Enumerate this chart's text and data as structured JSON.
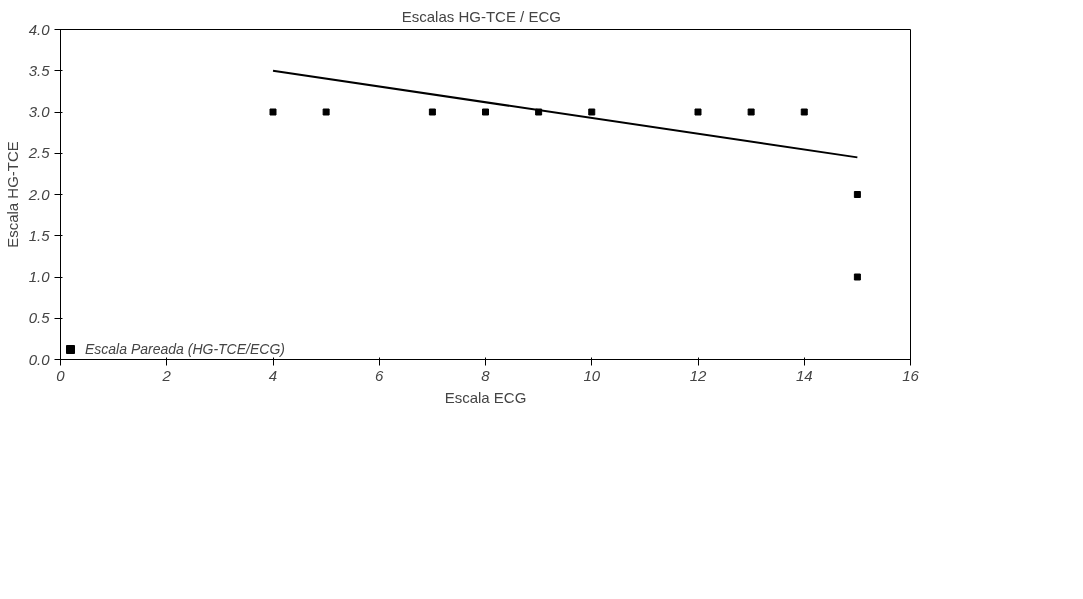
{
  "chart_data": {
    "type": "scatter",
    "title": "Escalas HG-TCE  /  ECG",
    "xlabel": "Escala ECG",
    "ylabel": "Escala HG-TCE",
    "xlim": [
      0,
      16
    ],
    "xticks": [
      0,
      2,
      4,
      6,
      8,
      10,
      12,
      14,
      16
    ],
    "ylim": [
      0,
      4
    ],
    "yticks": [
      {
        "value": 0,
        "label": "0.0"
      },
      {
        "value": 0.5,
        "label": "0.5"
      },
      {
        "value": 1,
        "label": "1.0"
      },
      {
        "value": 1.5,
        "label": "1.5"
      },
      {
        "value": 2,
        "label": "2.0"
      },
      {
        "value": 2.5,
        "label": "2.5"
      },
      {
        "value": 3,
        "label": "3.0"
      },
      {
        "value": 3.5,
        "label": "3.5"
      },
      {
        "value": 4,
        "label": "4.0"
      }
    ],
    "grid": false,
    "legend": "bottom left",
    "series": [
      {
        "name": "Escala Pareada (HG-TCE/ECG)",
        "marker": "square",
        "color": "#000000",
        "x": [
          4,
          5,
          7,
          8,
          9,
          10,
          12,
          13,
          14,
          15,
          15
        ],
        "values": [
          3,
          3,
          3,
          3,
          3,
          3,
          3,
          3,
          3,
          2,
          1
        ]
      },
      {
        "type": "line",
        "color": "#000000",
        "x": [
          4,
          15
        ],
        "values": [
          3.5,
          2.45
        ]
      }
    ]
  }
}
